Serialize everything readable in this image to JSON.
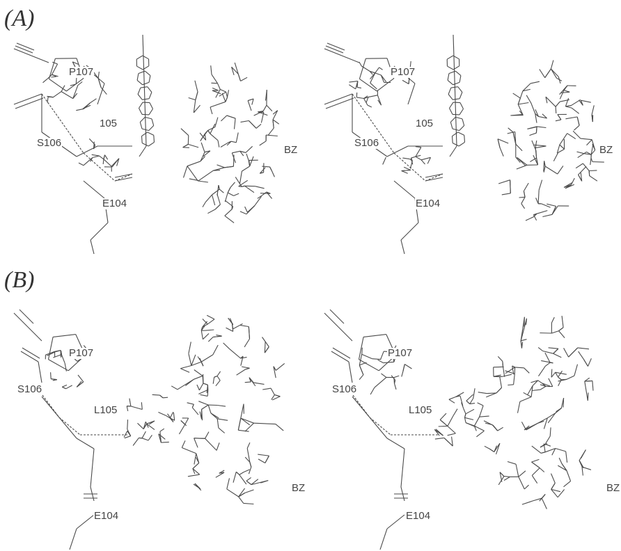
{
  "figure": {
    "panels": [
      {
        "id": "A",
        "label": "(A)",
        "residue_labels": {
          "p107": "P107",
          "r105": "105",
          "s106": "S106",
          "e104": "E104",
          "bz": "BZ"
        }
      },
      {
        "id": "B",
        "label": "(B)",
        "residue_labels": {
          "p107": "P107",
          "r105": "L105",
          "s106": "S106",
          "e104": "E104",
          "bz": "BZ"
        }
      }
    ],
    "line_color": "#4a4a4a"
  }
}
